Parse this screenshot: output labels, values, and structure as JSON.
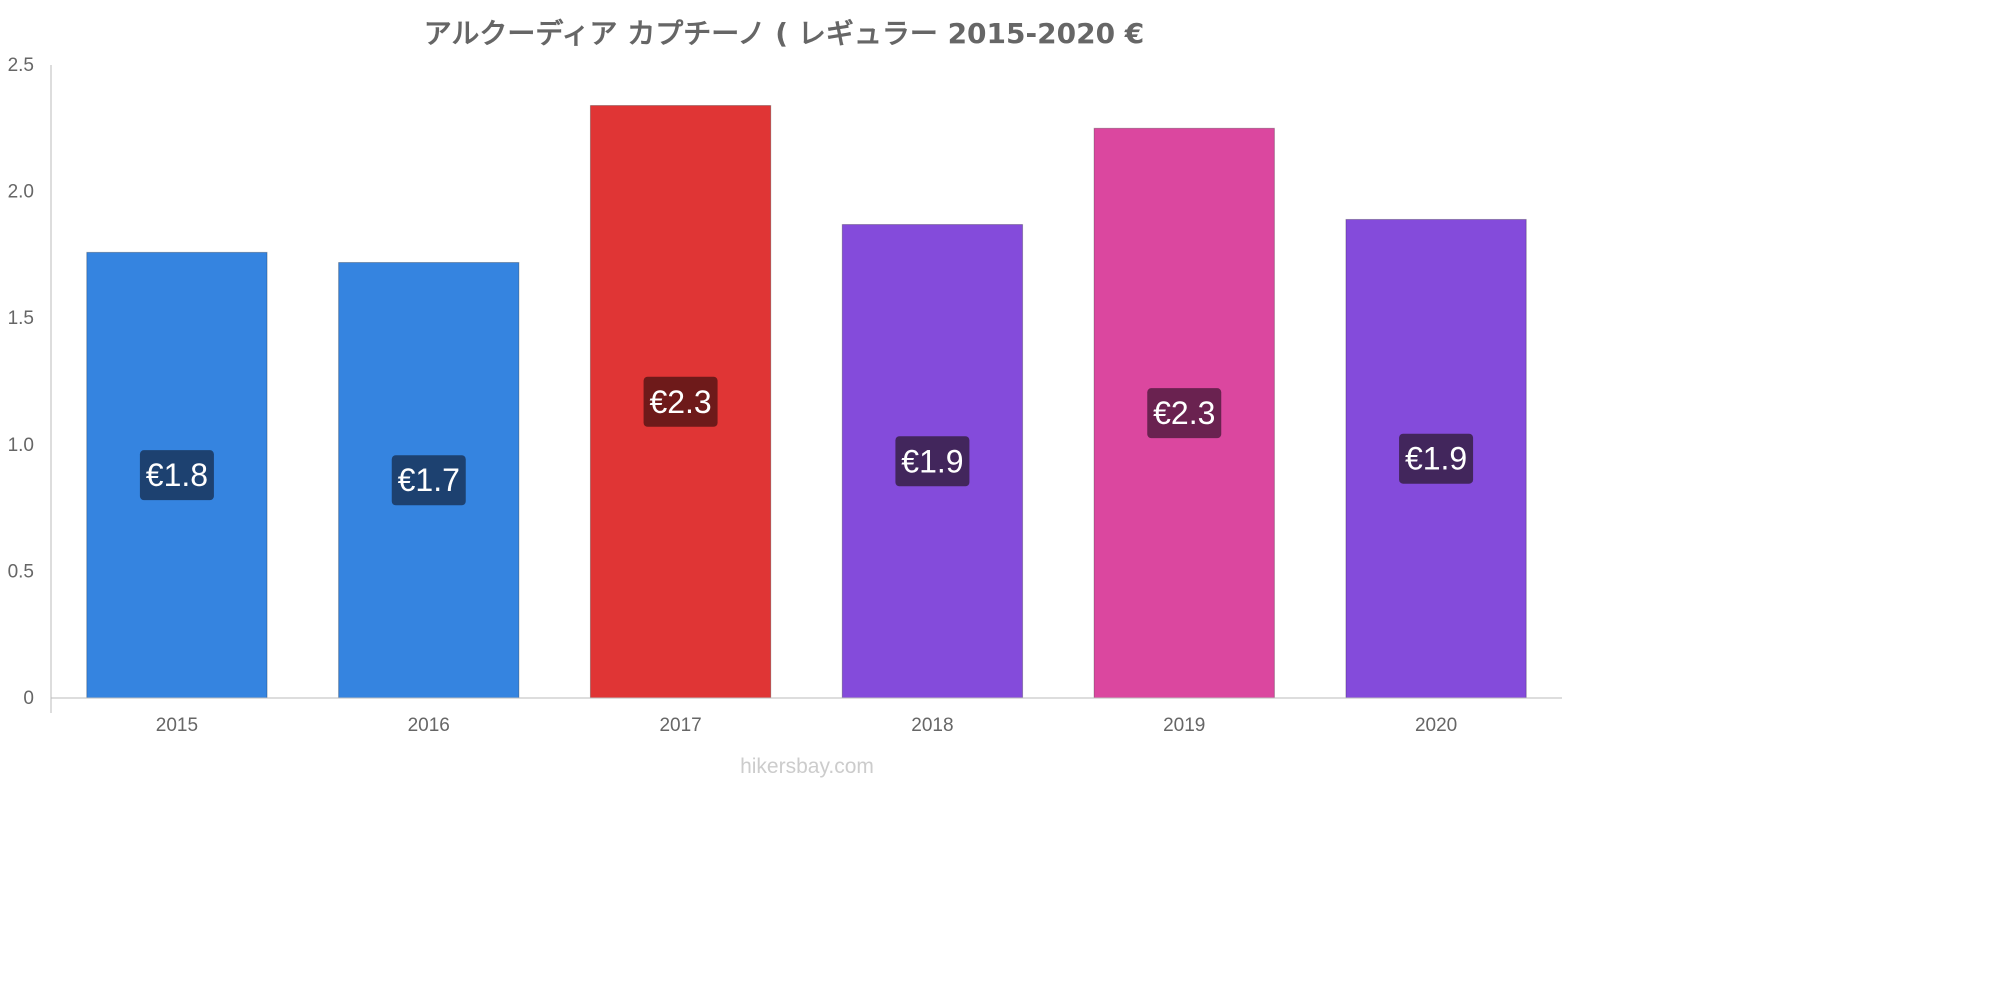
{
  "chart_data": {
    "type": "bar",
    "title": "アルクーディア カプチーノ ( レギュラー 2015-2020 €",
    "xlabel": "",
    "ylabel": "",
    "categories": [
      "2015",
      "2016",
      "2017",
      "2018",
      "2019",
      "2020"
    ],
    "values": [
      1.76,
      1.72,
      2.34,
      1.87,
      2.25,
      1.89
    ],
    "data_labels": [
      "€1.8",
      "€1.7",
      "€2.3",
      "€1.9",
      "€2.3",
      "€1.9"
    ],
    "bar_colors": [
      "#3584e0",
      "#3584e0",
      "#e03535",
      "#844bdb",
      "#db479f",
      "#844bdb"
    ],
    "label_colors": [
      "#1d4170",
      "#1d4170",
      "#6e1a1a",
      "#42265c",
      "#6a2250",
      "#42265c"
    ],
    "ylim": [
      0,
      2.5
    ],
    "yticks": [
      0,
      0.5,
      1.0,
      1.5,
      2.0,
      2.5
    ],
    "ytick_labels": [
      "0",
      "0.5",
      "1.0",
      "1.5",
      "2.0",
      "2.5"
    ],
    "grid": false,
    "legend": "none"
  },
  "footer": {
    "watermark": "hikersbay.com"
  }
}
